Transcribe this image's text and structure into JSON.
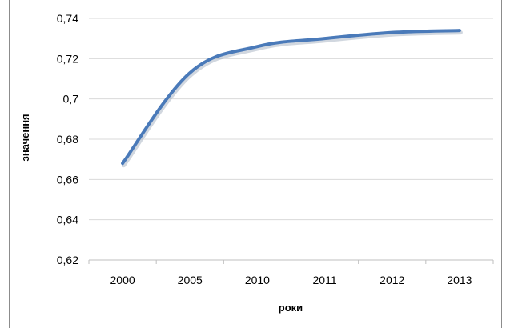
{
  "chart_data": {
    "type": "line",
    "title": "",
    "xlabel": "роки",
    "ylabel": "значення",
    "categories": [
      "2000",
      "2005",
      "2010",
      "2011",
      "2012",
      "2013"
    ],
    "series": [
      {
        "values": [
          0.668,
          0.713,
          0.726,
          0.73,
          0.733,
          0.734
        ]
      }
    ],
    "ylim": [
      0.62,
      0.74
    ],
    "yticks": [
      0.62,
      0.64,
      0.66,
      0.68,
      0.7,
      0.72,
      0.74
    ],
    "ytick_labels": [
      "0,62",
      "0,64",
      "0,66",
      "0,68",
      "0,7",
      "0,72",
      "0,74"
    ],
    "grid": true,
    "smooth": true,
    "legend": "none",
    "colors": {
      "line": "#4a7ab9",
      "grid": "#d9d9d9",
      "axis": "#bfbfbf"
    }
  }
}
